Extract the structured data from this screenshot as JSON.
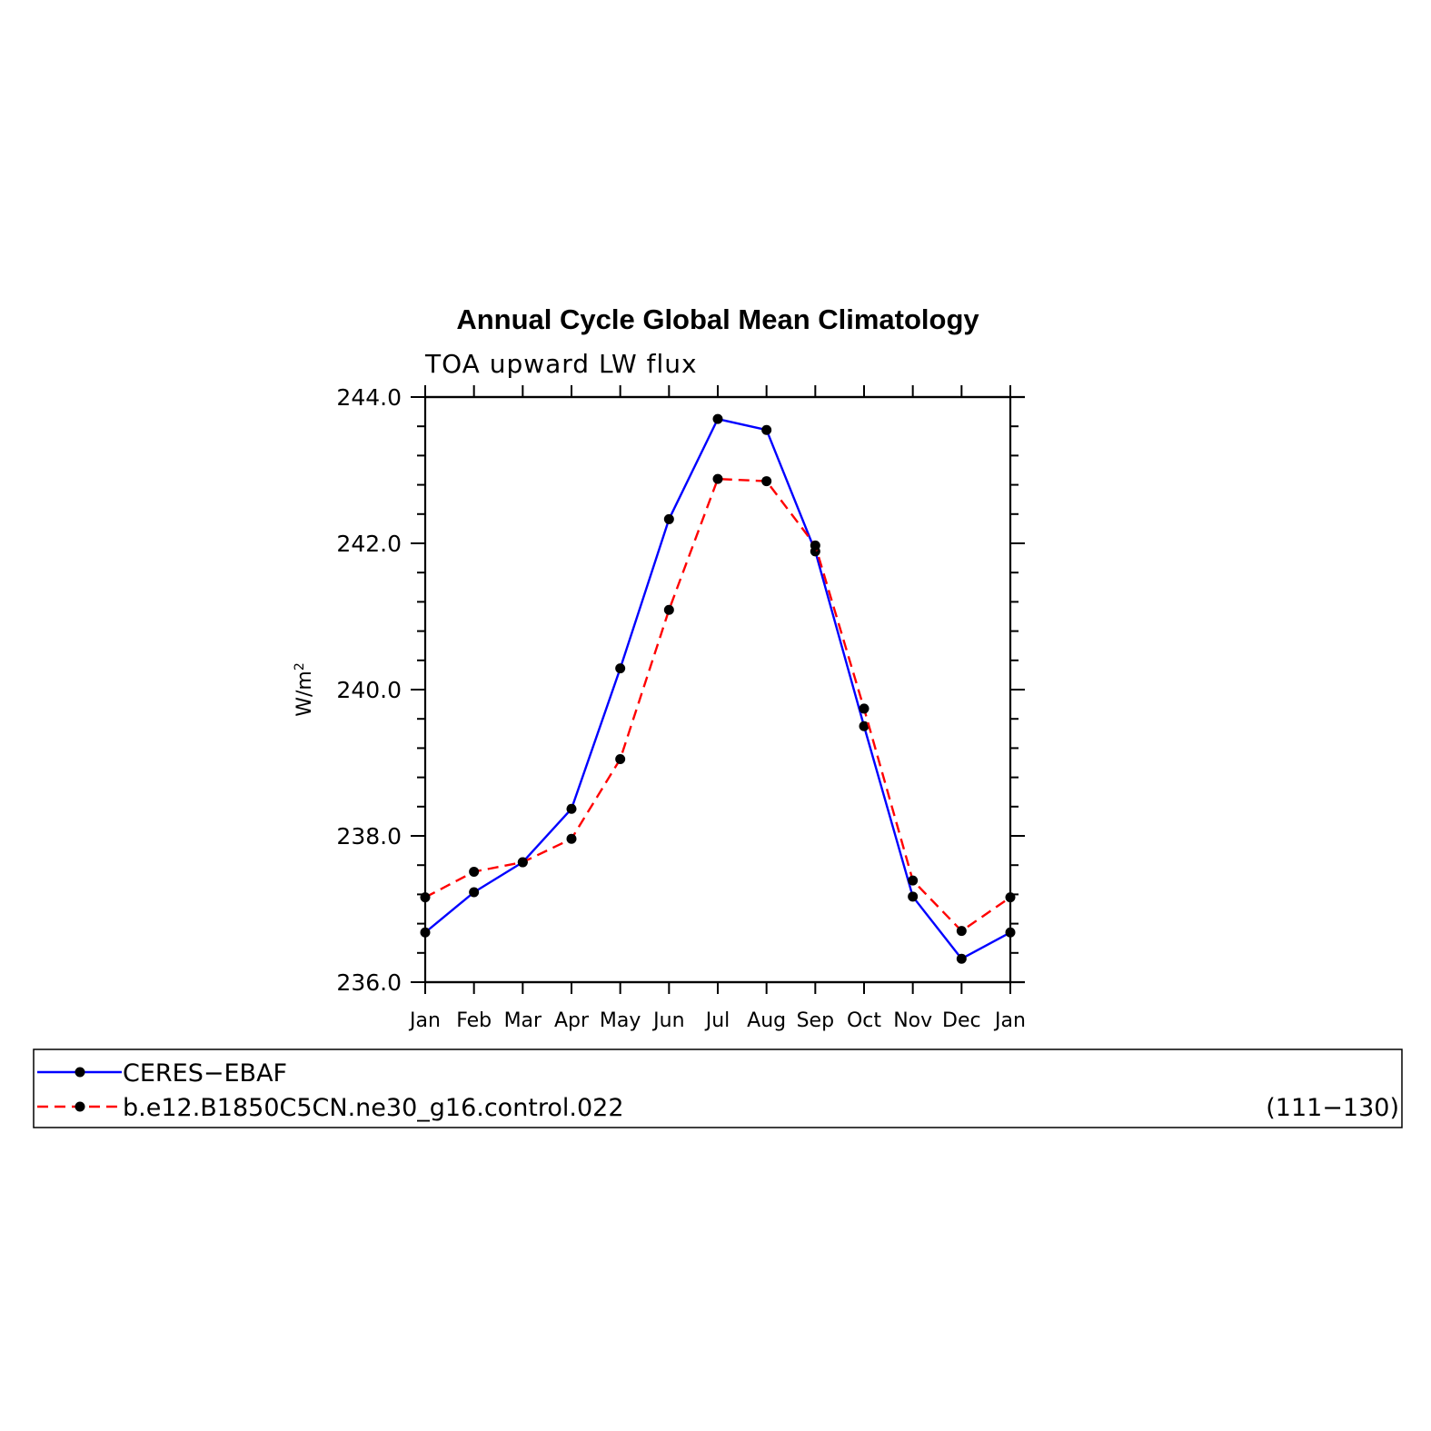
{
  "chart_data": {
    "type": "line",
    "title": "Annual Cycle Global Mean Climatology",
    "subtitle": "TOA upward LW flux",
    "ylabel": "W/m²",
    "ylabel_base": "W/m",
    "ylabel_sup": "2",
    "categories": [
      "Jan",
      "Feb",
      "Mar",
      "Apr",
      "May",
      "Jun",
      "Jul",
      "Aug",
      "Sep",
      "Oct",
      "Nov",
      "Dec",
      "Jan"
    ],
    "ylim": [
      236.0,
      244.0
    ],
    "yticks": [
      236.0,
      238.0,
      240.0,
      242.0,
      244.0
    ],
    "ytick_labels": [
      "236.0",
      "238.0",
      "240.0",
      "242.0",
      "244.0"
    ],
    "grid": false,
    "series": [
      {
        "name": "CERES−EBAF",
        "color": "#0000ff",
        "dash": "solid",
        "values": [
          236.68,
          237.23,
          237.64,
          238.37,
          240.29,
          242.33,
          243.7,
          243.55,
          241.89,
          239.5,
          237.17,
          236.32,
          236.68
        ]
      },
      {
        "name": "b.e12.B1850C5CN.ne30_g16.control.022",
        "color": "#ff0000",
        "dash": "dashed",
        "values": [
          237.16,
          237.51,
          237.64,
          237.96,
          239.05,
          241.09,
          242.88,
          242.85,
          241.97,
          239.74,
          237.39,
          236.7,
          237.16
        ]
      }
    ],
    "legend": {
      "placement": "bottom",
      "years_label": "(111−130)"
    }
  }
}
